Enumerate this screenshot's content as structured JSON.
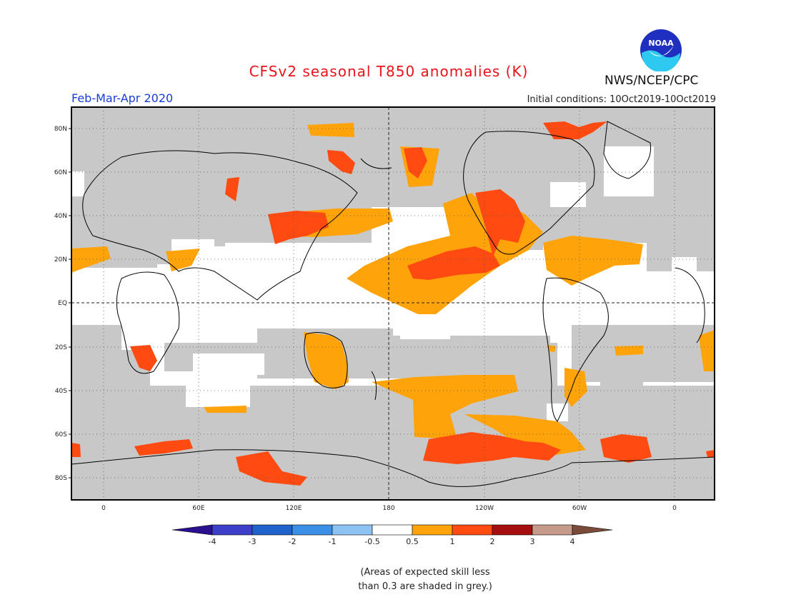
{
  "title": "CFSv2 seasonal T850 anomalies (K)",
  "season": "Feb-Mar-Apr 2020",
  "initial_conditions": "Initial conditions: 10Oct2019-10Oct2019",
  "agency": "NWS/NCEP/CPC",
  "logo_text": "NOAA",
  "lat_labels": [
    "80N",
    "60N",
    "40N",
    "20N",
    "EQ",
    "20S",
    "40S",
    "60S",
    "80S"
  ],
  "lon_labels": [
    "0",
    "60E",
    "120E",
    "180",
    "120W",
    "60W",
    "0"
  ],
  "colorbar": {
    "labels": [
      "-4",
      "-3",
      "-2",
      "-1",
      "-0.5",
      "0.5",
      "1",
      "2",
      "3",
      "4"
    ],
    "colors": [
      "#2a0f8e",
      "#3e3fc8",
      "#1f62cc",
      "#3c8fe6",
      "#8cc3f2",
      "#ffffff",
      "#ffa30a",
      "#ff4a12",
      "#a60f0f",
      "#c59a8a",
      "#7a4a3a"
    ]
  },
  "legend_note_line1": "(Areas of expected skill less",
  "legend_note_line2": "than 0.3 are shaded in grey.)",
  "colors": {
    "skill_grey": "#c8c8c8",
    "anom_05_1": "#ffa30a",
    "anom_1_2": "#ff4a12",
    "title_red": "#e8141a",
    "season_blue": "#1a3cd8"
  }
}
